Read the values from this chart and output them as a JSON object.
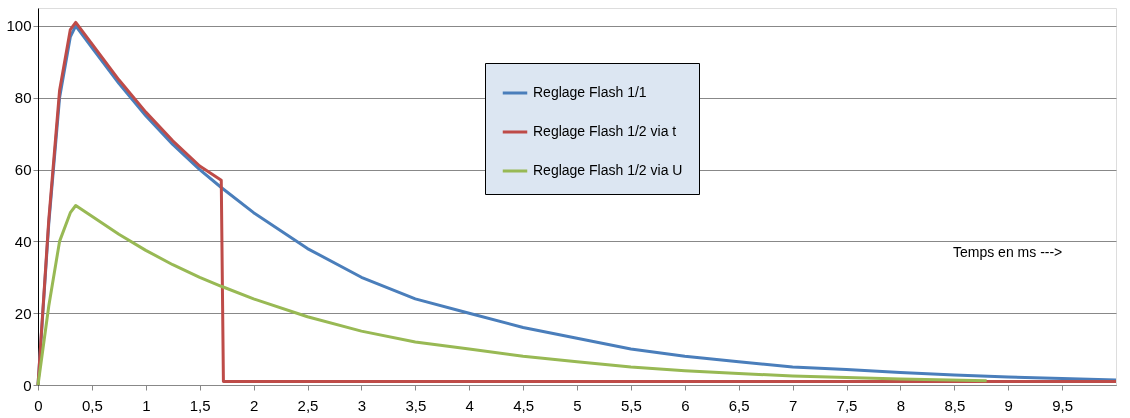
{
  "chart_data": {
    "type": "line",
    "xlim": [
      0,
      10
    ],
    "ylim": [
      0,
      105
    ],
    "xticks": [
      0,
      {
        "value": 0.5,
        "label": "0,5"
      },
      1,
      {
        "value": 1.5,
        "label": "1,5"
      },
      2,
      {
        "value": 2.5,
        "label": "2,5"
      },
      3,
      {
        "value": 3.5,
        "label": "3,5"
      },
      4,
      {
        "value": 4.5,
        "label": "4,5"
      },
      5,
      {
        "value": 5.5,
        "label": "5,5"
      },
      6,
      {
        "value": 6.5,
        "label": "6,5"
      },
      7,
      {
        "value": 7.5,
        "label": "7,5"
      },
      8,
      {
        "value": 8.5,
        "label": "8,5"
      },
      9,
      {
        "value": 9.5,
        "label": "9,5"
      }
    ],
    "yticks": [
      0,
      20,
      40,
      60,
      80,
      100
    ],
    "grid": "y",
    "legend": "top right",
    "marker": "none",
    "line_style": "solid",
    "annotations": [
      "Temps en ms --->"
    ],
    "series": [
      {
        "name": "Reglage Flash 1/1",
        "color": "#4a7ebb",
        "x": [
          0,
          0.1,
          0.2,
          0.3,
          0.35,
          0.5,
          0.75,
          1,
          1.25,
          1.5,
          1.7,
          2,
          2.5,
          3,
          3.5,
          4,
          4.5,
          5,
          5.5,
          6,
          6.5,
          7,
          7.5,
          8,
          8.5,
          9,
          9.5,
          10
        ],
        "values": [
          0,
          45,
          80,
          97,
          100,
          94,
          84,
          75,
          67,
          60,
          55,
          48,
          38,
          30,
          24,
          20,
          16,
          13,
          10,
          8,
          6.5,
          5,
          4.3,
          3.5,
          2.8,
          2.2,
          1.8,
          1.4
        ]
      },
      {
        "name": "Reglage Flash 1/2 via t",
        "color": "#be4b48",
        "x": [
          0,
          0.1,
          0.2,
          0.3,
          0.35,
          0.5,
          0.75,
          1,
          1.25,
          1.5,
          1.7,
          1.72,
          10
        ],
        "values": [
          0,
          46,
          82,
          99,
          101,
          95,
          85,
          76,
          68,
          61,
          57,
          1,
          1
        ]
      },
      {
        "name": "Reglage Flash 1/2 via U",
        "color": "#98b954",
        "x": [
          0,
          0.1,
          0.2,
          0.3,
          0.35,
          0.5,
          0.75,
          1,
          1.25,
          1.5,
          1.7,
          2,
          2.5,
          3,
          3.5,
          4,
          4.5,
          5,
          5.5,
          6,
          6.5,
          7,
          7.5,
          8,
          8.8
        ],
        "values": [
          0,
          22,
          40,
          48,
          50,
          47,
          42,
          37.5,
          33.5,
          30,
          27.5,
          24,
          19,
          15,
          12,
          10,
          8,
          6.5,
          5,
          4,
          3.2,
          2.5,
          2.1,
          1.7,
          1.2
        ]
      }
    ]
  }
}
